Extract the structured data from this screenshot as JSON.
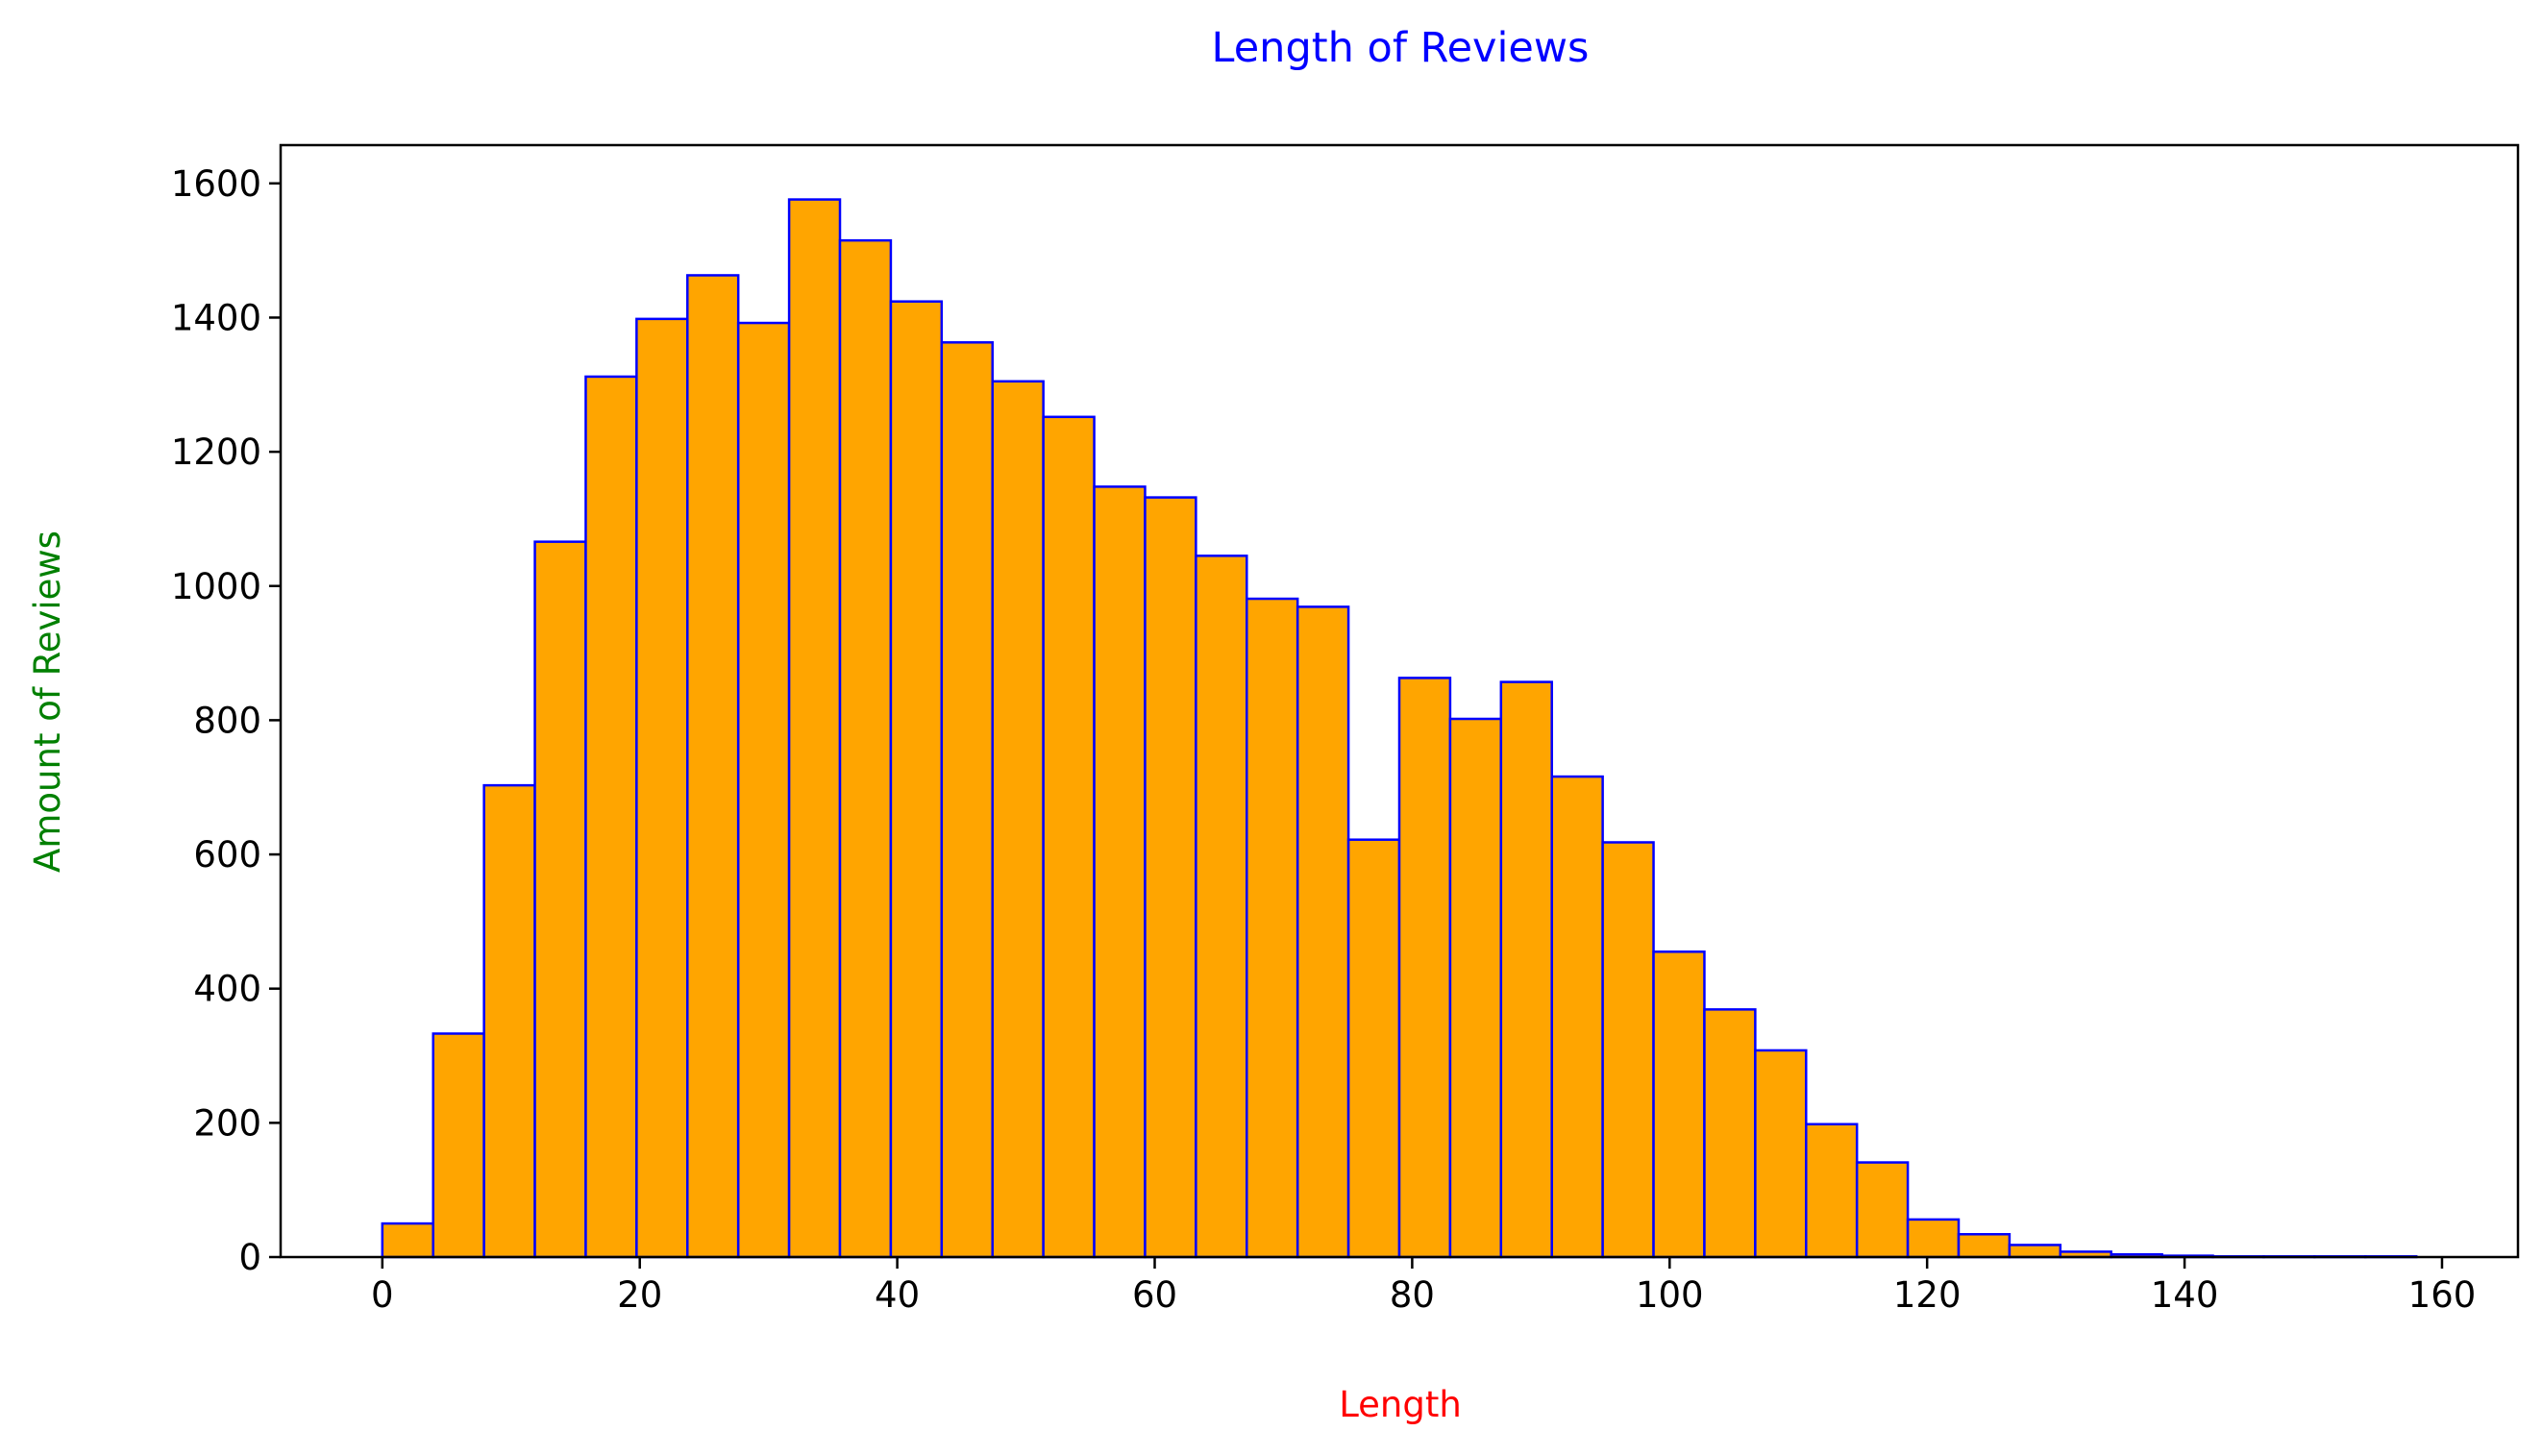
{
  "chart_data": {
    "type": "bar",
    "subtype": "histogram",
    "title": "Length of Reviews",
    "xlabel": "Length",
    "ylabel": "Amount of Reviews",
    "xlim": [
      -7.9,
      165.9
    ],
    "ylim": [
      0,
      1657
    ],
    "x_ticks": [
      0,
      20,
      40,
      60,
      80,
      100,
      120,
      140,
      160
    ],
    "y_ticks": [
      0,
      200,
      400,
      600,
      800,
      1000,
      1200,
      1400,
      1600
    ],
    "bin_width": 3.95,
    "bin_start": 0,
    "values": [
      50,
      333,
      703,
      1066,
      1312,
      1398,
      1463,
      1392,
      1576,
      1515,
      1424,
      1363,
      1305,
      1252,
      1148,
      1132,
      1045,
      981,
      969,
      622,
      863,
      802,
      857,
      716,
      618,
      455,
      369,
      308,
      198,
      141,
      56,
      34,
      18,
      8,
      4,
      2,
      1,
      1,
      1,
      1
    ],
    "grid": false,
    "legend": "none",
    "colors": {
      "bar_fill": "#FFA500",
      "bar_edge": "#0000FF",
      "title": "#0000FF",
      "xlabel": "#FF0000",
      "ylabel": "#008000",
      "axis": "#000000"
    }
  }
}
